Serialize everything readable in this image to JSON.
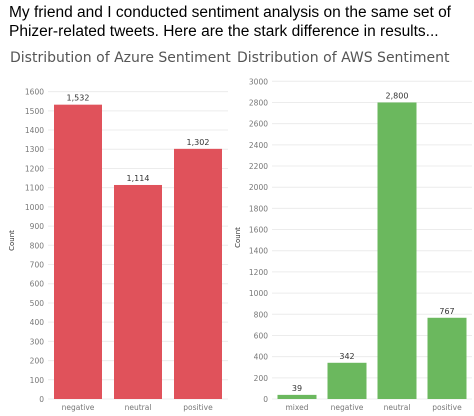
{
  "caption": "My friend and I conducted sentiment analysis on the same set of Phizer-related tweets. Here are the stark difference in results...",
  "colors": {
    "azure_bar": "#e0525b",
    "aws_bar": "#6bb85e",
    "grid": "#ececec",
    "tick_text": "#777777",
    "label_text": "#333333"
  },
  "chart_data": [
    {
      "type": "bar",
      "title": "Distribution of Azure Sentiment",
      "ylabel": "Count",
      "xlabel": "",
      "categories": [
        "negative",
        "neutral",
        "positive"
      ],
      "values": [
        1532,
        1114,
        1302
      ],
      "value_labels": [
        "1,532",
        "1,114",
        "1,302"
      ],
      "yticks": [
        0,
        100,
        200,
        300,
        400,
        500,
        600,
        700,
        800,
        900,
        1000,
        1100,
        1200,
        1300,
        1400,
        1500,
        1600
      ],
      "ylim": [
        0,
        1650
      ],
      "grid": true
    },
    {
      "type": "bar",
      "title": "Distribution of AWS Sentiment",
      "ylabel": "Count",
      "xlabel": "",
      "categories": [
        "mixed",
        "negative",
        "neutral",
        "positive"
      ],
      "values": [
        39,
        342,
        2800,
        767
      ],
      "value_labels": [
        "39",
        "342",
        "2,800",
        "767"
      ],
      "yticks": [
        0,
        200,
        400,
        600,
        800,
        1000,
        1200,
        1400,
        1600,
        1800,
        2000,
        2200,
        2400,
        2600,
        2800,
        3000
      ],
      "ylim": [
        0,
        3050
      ],
      "grid": true
    }
  ]
}
